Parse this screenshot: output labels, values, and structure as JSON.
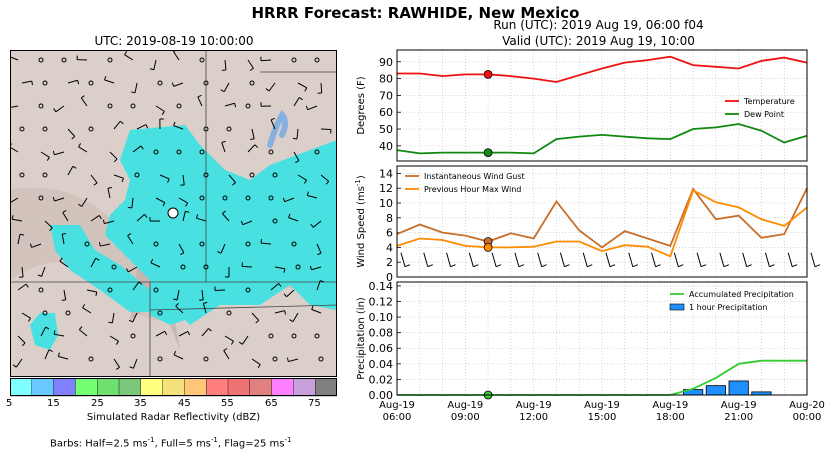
{
  "figure": {
    "title": "HRRR Forecast: RAWHIDE, New Mexico",
    "map_title": "UTC: 2019-08-19 10:00:00",
    "run_line": "Run (UTC): 2019 Aug 19, 06:00 f04",
    "valid_line": "Valid (UTC): 2019 Aug 19, 10:00",
    "barbs_note": "Barbs: Half=2.5 ms",
    "barbs_note_mid": ", Full=5 ms",
    "barbs_note_end": ", Flag=25 ms",
    "barbs_sup": "-1"
  },
  "colorbar": {
    "label": "Simulated Radar Reflectivity (dBZ)",
    "ticks": [
      "5",
      "15",
      "25",
      "35",
      "45",
      "55",
      "65",
      "75"
    ],
    "colors": [
      "#7fffff",
      "#69c8ff",
      "#8080ff",
      "#72ff72",
      "#6ee06e",
      "#7bc77b",
      "#ffff80",
      "#f5e27c",
      "#ffc67a",
      "#ff7f7f",
      "#ee7474",
      "#e08080",
      "#ff80ff",
      "#c8a0dc",
      "#808080"
    ]
  },
  "chart_data": [
    {
      "type": "line",
      "panel": "temperature",
      "ylabel": "Degrees (F)",
      "ylim": [
        31,
        97
      ],
      "yticks": [
        "40",
        "50",
        "60",
        "70",
        "80",
        "90"
      ],
      "x": [
        "06:00",
        "07:00",
        "08:00",
        "09:00",
        "10:00",
        "11:00",
        "12:00",
        "13:00",
        "14:00",
        "15:00",
        "16:00",
        "17:00",
        "18:00",
        "19:00",
        "20:00",
        "21:00",
        "22:00",
        "23:00",
        "00:00"
      ],
      "series": [
        {
          "name": "Temperature",
          "color": "#ee1111",
          "values": [
            83,
            83,
            81.5,
            82.5,
            82.5,
            81.5,
            80,
            78,
            82,
            86,
            89.5,
            91,
            93,
            88,
            87,
            86,
            90.5,
            92.5,
            89.5
          ]
        },
        {
          "name": "Dew Point",
          "color": "#118811",
          "values": [
            37.5,
            35.5,
            36,
            36,
            36,
            36,
            35.5,
            44,
            45.5,
            46.5,
            45.5,
            44.5,
            44,
            50,
            51,
            53,
            49,
            42,
            46
          ]
        }
      ],
      "marker_index": 4,
      "legend": "center-right"
    },
    {
      "type": "line",
      "panel": "wind",
      "ylabel": "Wind Speed (ms",
      "ylabel_sup": "-1",
      "ylabel_end": ")",
      "ylim": [
        0,
        15
      ],
      "yticks": [
        "0",
        "2",
        "4",
        "6",
        "8",
        "10",
        "12",
        "14"
      ],
      "series": [
        {
          "name": "Instantaneous Wind Gust",
          "color": "#c86e28",
          "values": [
            5.8,
            7.1,
            6,
            5.6,
            4.8,
            5.9,
            5.2,
            10.2,
            6.3,
            4,
            6.2,
            5.2,
            4.2,
            11.9,
            7.8,
            8.3,
            5.3,
            5.8,
            12
          ]
        },
        {
          "name": "Previous Hour Max Wind",
          "color": "#ff8c00",
          "values": [
            4.2,
            5.2,
            5,
            4.2,
            4,
            4,
            4.1,
            4.8,
            4.8,
            3.5,
            4.3,
            4.1,
            2.8,
            11.7,
            10.1,
            9.4,
            7.8,
            6.9,
            9.4
          ]
        }
      ],
      "marker_index": 4,
      "legend": "top-left"
    },
    {
      "type": "bar",
      "panel": "precipitation",
      "ylabel": "Precipitation (in)",
      "ylim": [
        0,
        0.145
      ],
      "yticks": [
        "0.00",
        "0.02",
        "0.04",
        "0.06",
        "0.08",
        "0.10",
        "0.12",
        "0.14"
      ],
      "xtick_labels": [
        [
          "Aug-19",
          "06:00"
        ],
        [
          "Aug-19",
          "09:00"
        ],
        [
          "Aug-19",
          "12:00"
        ],
        [
          "Aug-19",
          "15:00"
        ],
        [
          "Aug-19",
          "18:00"
        ],
        [
          "Aug-19",
          "21:00"
        ],
        [
          "Aug-20",
          "00:00"
        ]
      ],
      "series": [
        {
          "name": "Accumulated Precipitation",
          "color": "#33cc33",
          "kind": "line",
          "values": [
            0,
            0,
            0,
            0,
            0,
            0,
            0,
            0,
            0,
            0,
            0,
            0,
            0,
            0.008,
            0.022,
            0.04,
            0.044,
            0.044,
            0.044
          ]
        },
        {
          "name": "1 hour Precipitation",
          "color": "#1e90ff",
          "kind": "bar",
          "values": [
            0,
            0,
            0,
            0,
            0,
            0,
            0,
            0,
            0,
            0,
            0,
            0,
            0,
            0.007,
            0.012,
            0.018,
            0.004,
            0,
            0
          ]
        }
      ],
      "marker_index": 4,
      "legend": "top-right"
    }
  ]
}
